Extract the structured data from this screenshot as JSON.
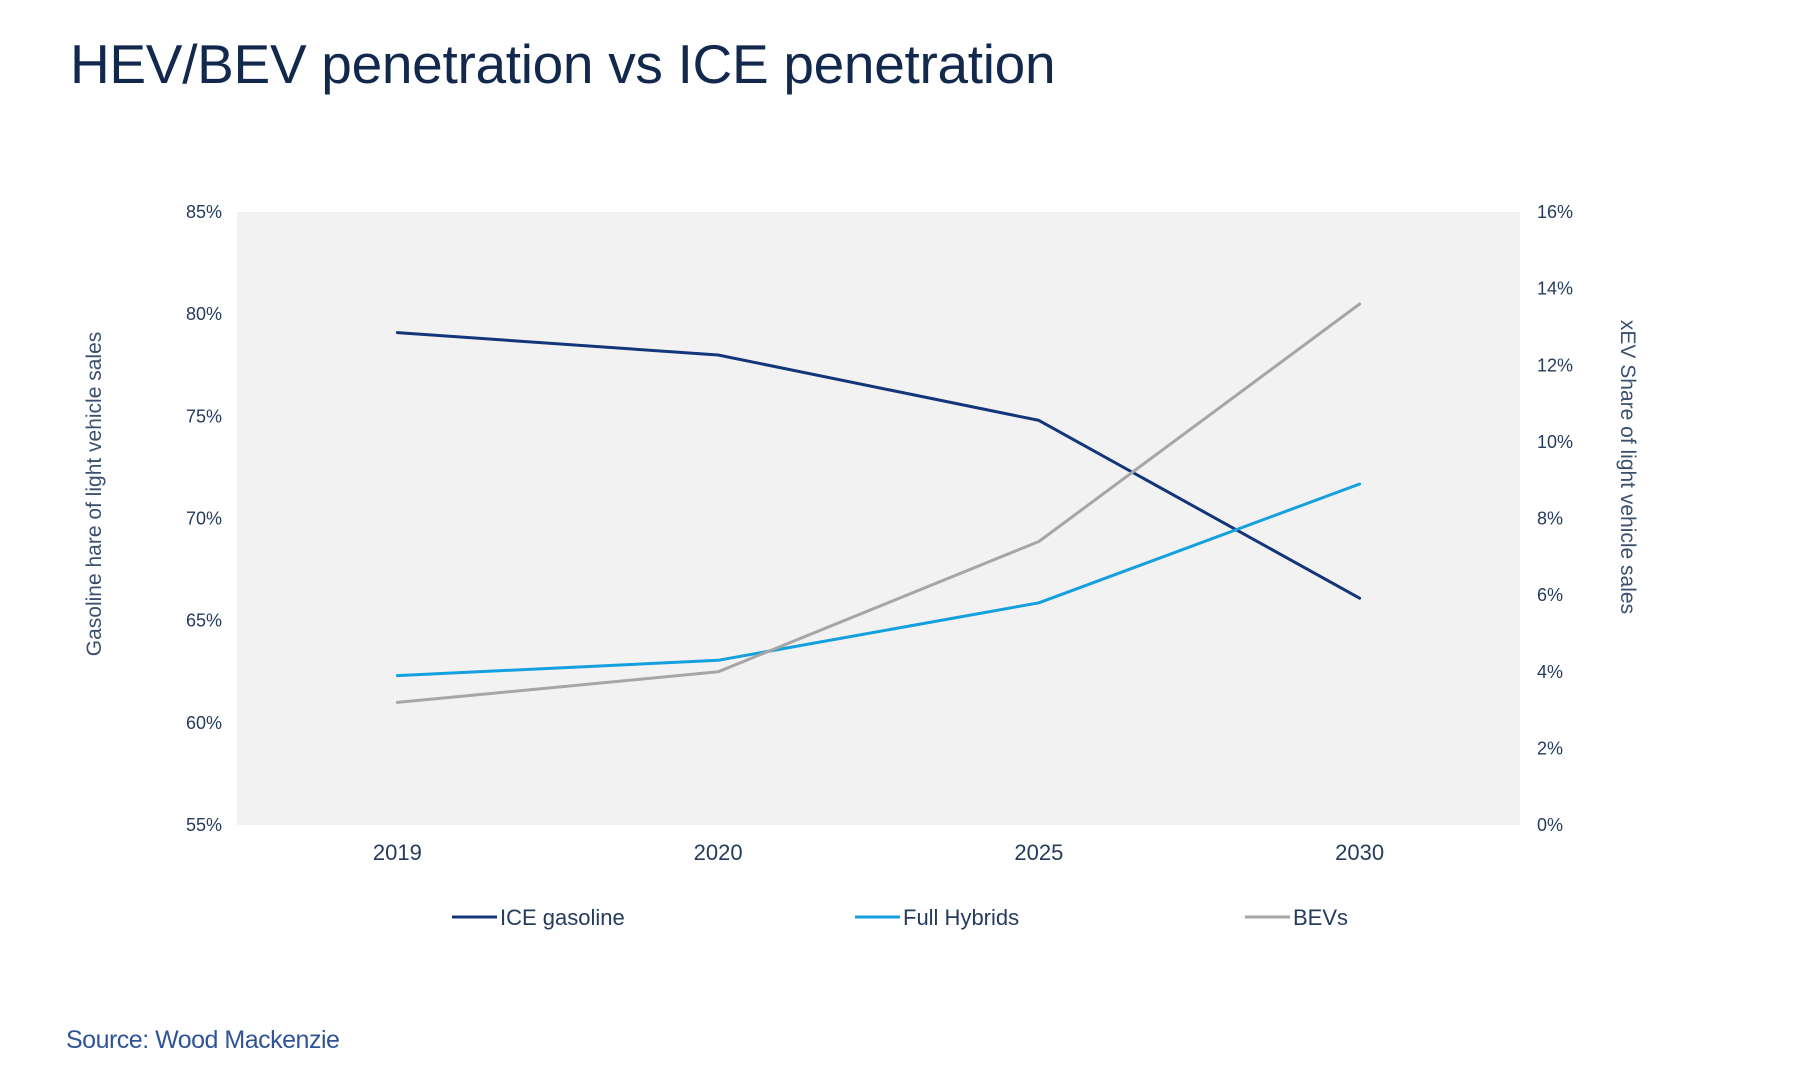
{
  "title": "HEV/BEV penetration  vs ICE penetration",
  "source": "Source: Wood Mackenzie",
  "chart_data": {
    "type": "line",
    "title": "HEV/BEV penetration vs ICE penetration",
    "categories": [
      "2019",
      "2020",
      "2025",
      "2030"
    ],
    "xlabel": "",
    "ylabel_left": "Gasoline hare  of light vehicle  sales",
    "ylabel_right": "xEV Share  of light vehicle  sales",
    "ylim_left": [
      55,
      85
    ],
    "ylim_right": [
      0,
      16
    ],
    "yticks_left": [
      "55%",
      "60%",
      "65%",
      "70%",
      "75%",
      "80%",
      "85%"
    ],
    "yticks_right": [
      "0%",
      "2%",
      "4%",
      "6%",
      "8%",
      "10%",
      "12%",
      "14%",
      "16%"
    ],
    "grid": false,
    "plot_background": "#f2f2f2",
    "legend_position": "bottom",
    "series": [
      {
        "name": "ICE gasoline",
        "axis": "left",
        "color": "#13367a",
        "values": [
          79.1,
          78.0,
          74.8,
          66.1
        ]
      },
      {
        "name": "Full Hybrids",
        "axis": "right",
        "color": "#14a0de",
        "values": [
          3.9,
          4.3,
          5.8,
          8.9
        ]
      },
      {
        "name": "BEVs",
        "axis": "right",
        "color": "#a6a6a6",
        "values": [
          3.2,
          4.0,
          7.4,
          13.6
        ]
      }
    ]
  }
}
